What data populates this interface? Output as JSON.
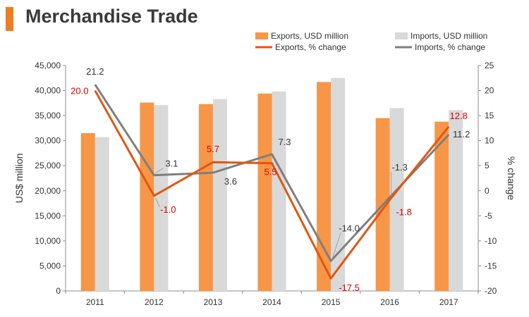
{
  "header": {
    "title": "Merchandise Trade"
  },
  "colors": {
    "accent": "#EF7D22",
    "exports_bar": "#F79646",
    "imports_bar": "#D9D9D9",
    "exports_line": "#E2560F",
    "imports_line": "#7F7F7F",
    "exports_label": "#E00000",
    "imports_label": "#333333",
    "axis": "#8C8C8C"
  },
  "chart_data": {
    "type": "bar",
    "categories": [
      "2011",
      "2012",
      "2013",
      "2014",
      "2015",
      "2016",
      "2017"
    ],
    "series": [
      {
        "name": "Exports, USD million",
        "type": "bar",
        "axis": "left",
        "values": [
          31500,
          37600,
          37300,
          39400,
          41700,
          34500,
          33800
        ]
      },
      {
        "name": "Imports, USD million",
        "type": "bar",
        "axis": "left",
        "values": [
          30700,
          37100,
          38300,
          39800,
          42500,
          36500,
          36100
        ]
      },
      {
        "name": "Exports, % change",
        "type": "line",
        "axis": "right",
        "values": [
          20.0,
          -1.0,
          5.7,
          5.5,
          -17.5,
          -1.8,
          12.8
        ],
        "labels": [
          "20.0",
          "-1.0",
          "5.7",
          "5.5",
          "-17.5",
          "-1.8",
          "12.8"
        ]
      },
      {
        "name": "Imports, % change",
        "type": "line",
        "axis": "right",
        "values": [
          21.2,
          3.1,
          3.6,
          7.3,
          -14.0,
          -1.3,
          11.2
        ],
        "labels": [
          "21.2",
          "3.1",
          "3.6",
          "7.3",
          "-14.0",
          "-1.3",
          "11.2"
        ]
      }
    ],
    "ylabel": "US$ million",
    "y2label": "% change",
    "ylim": [
      0,
      45000
    ],
    "y2lim": [
      -20,
      25
    ],
    "yticks": [
      "0",
      "5,000",
      "10,000",
      "15,000",
      "20,000",
      "25,000",
      "30,000",
      "35,000",
      "40,000",
      "45,000"
    ],
    "y2ticks": [
      "-20",
      "-15",
      "-10",
      "-5",
      "0",
      "5",
      "10",
      "15",
      "20",
      "25"
    ],
    "grid": false,
    "legend_position": "top-right"
  }
}
